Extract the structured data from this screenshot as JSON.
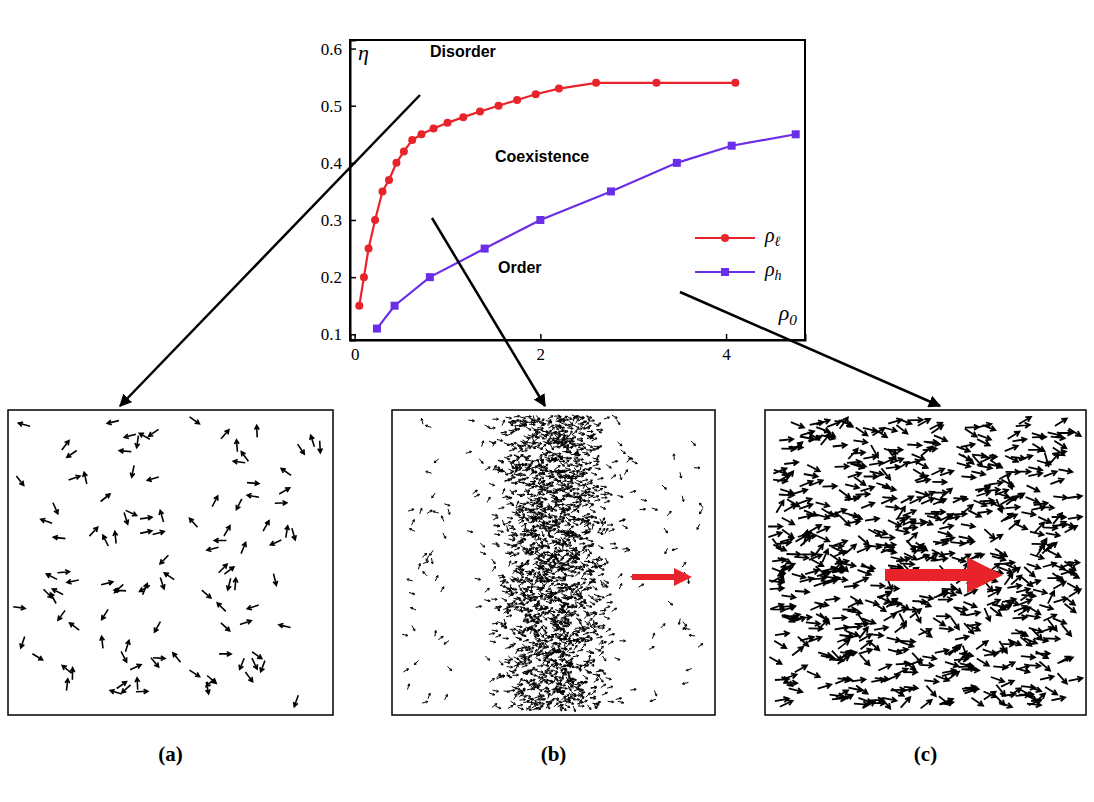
{
  "chart_data": {
    "type": "line",
    "x_label": "ρ0",
    "y_label": "η",
    "xlim": [
      -0.05,
      4.85
    ],
    "xticks": [
      0,
      2,
      4
    ],
    "ylim": [
      0.09,
      0.615
    ],
    "yticks": [
      0.1,
      0.2,
      0.3,
      0.4,
      0.5,
      0.6
    ],
    "annotations": [
      "Disorder",
      "Coexistence",
      "Order"
    ],
    "legend": "right",
    "series": [
      {
        "name": "ρℓ",
        "color": "#e8232a",
        "marker": "circle",
        "line_style": "solid",
        "x": [
          0.05,
          0.1,
          0.15,
          0.22,
          0.3,
          0.37,
          0.45,
          0.53,
          0.62,
          0.72,
          0.85,
          1.0,
          1.17,
          1.35,
          1.55,
          1.75,
          1.95,
          2.2,
          2.6,
          3.25,
          4.1
        ],
        "values": [
          0.15,
          0.2,
          0.25,
          0.3,
          0.35,
          0.37,
          0.4,
          0.42,
          0.44,
          0.45,
          0.46,
          0.47,
          0.48,
          0.49,
          0.5,
          0.51,
          0.52,
          0.53,
          0.54,
          0.54,
          0.54
        ]
      },
      {
        "name": "ρh",
        "color": "#6b2ee8",
        "marker": "square",
        "line_style": "solid",
        "x": [
          0.24,
          0.43,
          0.81,
          1.4,
          2.0,
          2.76,
          3.47,
          4.06,
          4.75
        ],
        "values": [
          0.11,
          0.15,
          0.2,
          0.25,
          0.3,
          0.35,
          0.4,
          0.43,
          0.45
        ]
      }
    ]
  },
  "panels": [
    {
      "label": "(a)"
    },
    {
      "label": "(b)"
    },
    {
      "label": "(c)"
    }
  ]
}
